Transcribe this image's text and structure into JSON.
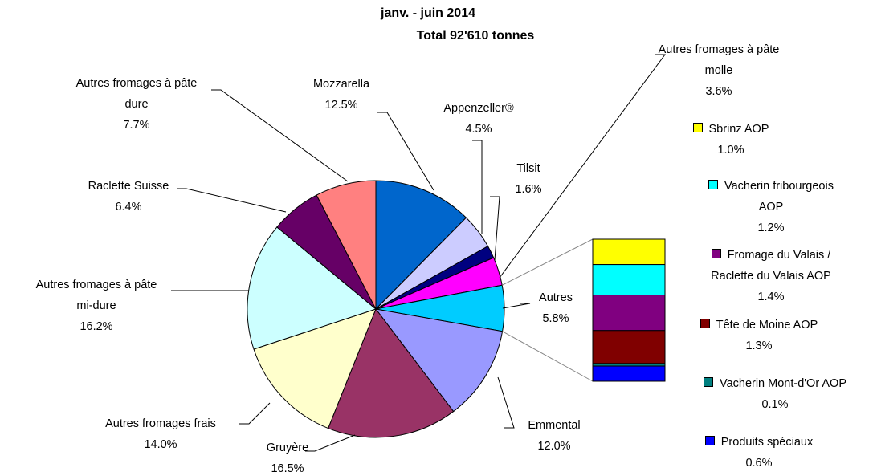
{
  "chart_data": {
    "type": "pie_of_bar",
    "title": "janv. -  juin 2014",
    "subtitle": "Total 92'610 tonnes",
    "categories": [
      "Mozzarella",
      "Appenzeller®",
      "Tilsit",
      "Autres fromages à pâte molle",
      "Autres",
      "Emmental",
      "Gruyère",
      "Autres fromages frais",
      "Autres fromages à pâte mi-dure",
      "Raclette Suisse",
      "Autres fromages à pâte dure"
    ],
    "values": [
      12.5,
      4.5,
      1.6,
      3.6,
      5.8,
      12.0,
      16.5,
      14.0,
      16.2,
      6.4,
      7.7
    ],
    "value_labels": [
      "12.5%",
      "4.5%",
      "1.6%",
      "3.6%",
      "5.8%",
      "12.0%",
      "16.5%",
      "14.0%",
      "16.2%",
      "6.4%",
      "7.7%"
    ],
    "colors": [
      "#0066cc",
      "#ccccff",
      "#000080",
      "#ff00ff",
      "#00ccff",
      "#9999ff",
      "#993366",
      "#ffffcc",
      "#ccffff",
      "#660066",
      "#ff8080"
    ],
    "bar": {
      "categories": [
        "Sbrinz AOP",
        "Vacherin fribourgeois AOP",
        "Fromage du Valais / Raclette du Valais AOP",
        "Tête de Moine AOP",
        "Vacherin Mont-d'Or AOP",
        "Produits spéciaux"
      ],
      "values": [
        1.0,
        1.2,
        1.4,
        1.3,
        0.1,
        0.6
      ],
      "value_labels": [
        "1.0%",
        "1.2%",
        "1.4%",
        "1.3%",
        "0.1%",
        "0.6%"
      ],
      "colors": [
        "#ffff00",
        "#00ffff",
        "#800080",
        "#800000",
        "#008080",
        "#0000ff"
      ]
    }
  }
}
